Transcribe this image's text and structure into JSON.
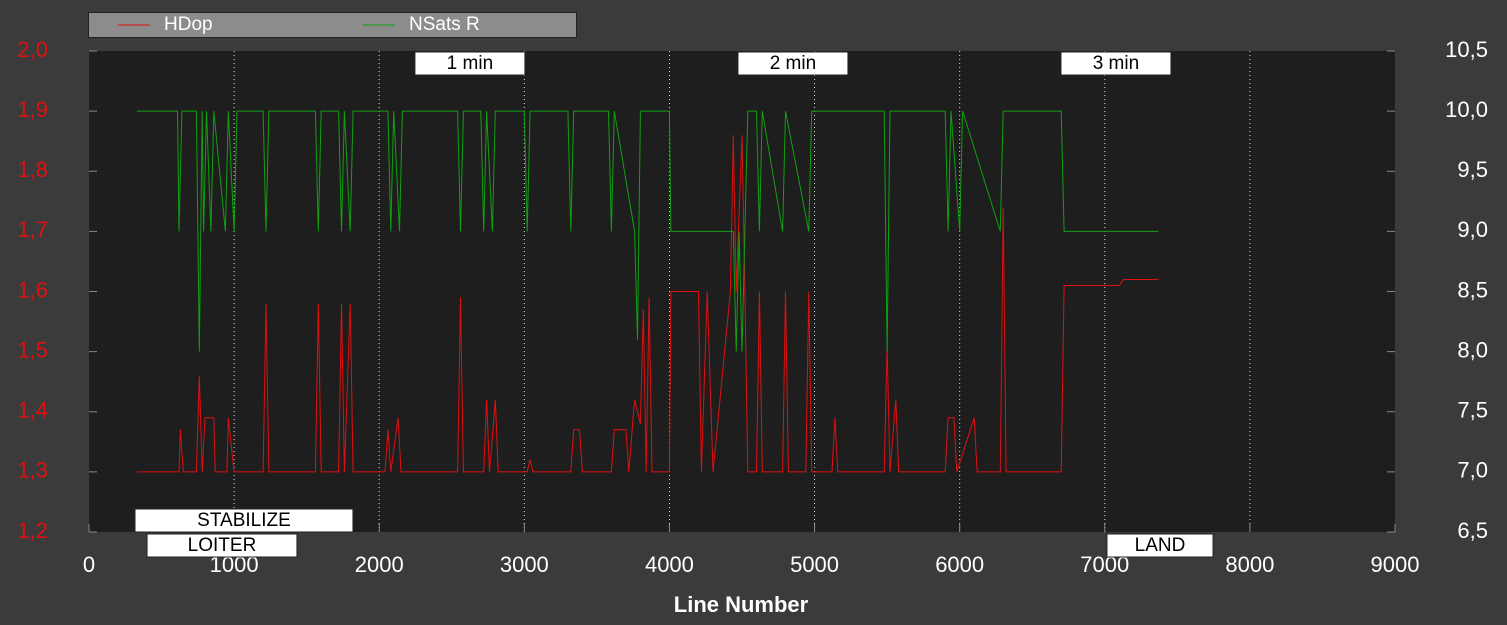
{
  "chart_data": {
    "type": "line",
    "xlabel": "Line Number",
    "xlim": [
      0,
      9000
    ],
    "xticks": [
      0,
      1000,
      2000,
      3000,
      4000,
      5000,
      6000,
      7000,
      8000,
      9000
    ],
    "ylim": [
      1.2,
      2.0
    ],
    "yticks": [
      {
        "value": 1.2,
        "label": "1,2"
      },
      {
        "value": 1.3,
        "label": "1,3"
      },
      {
        "value": 1.4,
        "label": "1,4"
      },
      {
        "value": 1.5,
        "label": "1,5"
      },
      {
        "value": 1.6,
        "label": "1,6"
      },
      {
        "value": 1.7,
        "label": "1,7"
      },
      {
        "value": 1.8,
        "label": "1,8"
      },
      {
        "value": 1.9,
        "label": "1,9"
      },
      {
        "value": 2.0,
        "label": "2,0"
      }
    ],
    "y2lim": [
      6.5,
      10.5
    ],
    "y2ticks": [
      {
        "value": 6.5,
        "label": "6,5"
      },
      {
        "value": 7.0,
        "label": "7,0"
      },
      {
        "value": 7.5,
        "label": "7,5"
      },
      {
        "value": 8.0,
        "label": "8,0"
      },
      {
        "value": 8.5,
        "label": "8,5"
      },
      {
        "value": 9.0,
        "label": "9,0"
      },
      {
        "value": 9.5,
        "label": "9,5"
      },
      {
        "value": 10.0,
        "label": "10,0"
      },
      {
        "value": 10.5,
        "label": "10,5"
      }
    ],
    "grid": true,
    "series": [
      {
        "name": "HDop",
        "color": "#e01010",
        "x": [
          330,
          620,
          630,
          650,
          740,
          760,
          780,
          800,
          860,
          870,
          950,
          960,
          1000,
          1200,
          1220,
          1240,
          1560,
          1580,
          1600,
          1720,
          1740,
          1760,
          1800,
          1820,
          2040,
          2060,
          2080,
          2130,
          2150,
          2540,
          2560,
          2580,
          2720,
          2740,
          2760,
          2800,
          2820,
          3020,
          3040,
          3060,
          3320,
          3340,
          3380,
          3400,
          3600,
          3620,
          3700,
          3720,
          3760,
          3800,
          3820,
          3840,
          3860,
          3880,
          4000,
          4010,
          4200,
          4220,
          4260,
          4300,
          4420,
          4440,
          4460,
          4500,
          4520,
          4540,
          4600,
          4620,
          4640,
          4780,
          4800,
          4820,
          4940,
          4960,
          4980,
          5120,
          5140,
          5160,
          5480,
          5500,
          5520,
          5560,
          5580,
          5900,
          5920,
          5960,
          5980,
          6100,
          6120,
          6280,
          6300,
          6320,
          6700,
          6720,
          7100,
          7130,
          7370
        ],
        "values": [
          1.3,
          1.3,
          1.37,
          1.3,
          1.3,
          1.46,
          1.3,
          1.39,
          1.39,
          1.3,
          1.3,
          1.39,
          1.3,
          1.3,
          1.58,
          1.3,
          1.3,
          1.58,
          1.3,
          1.3,
          1.58,
          1.3,
          1.58,
          1.3,
          1.3,
          1.37,
          1.3,
          1.39,
          1.3,
          1.3,
          1.59,
          1.3,
          1.3,
          1.42,
          1.3,
          1.42,
          1.3,
          1.3,
          1.32,
          1.3,
          1.3,
          1.37,
          1.37,
          1.3,
          1.3,
          1.37,
          1.37,
          1.3,
          1.42,
          1.38,
          1.57,
          1.3,
          1.59,
          1.3,
          1.3,
          1.6,
          1.6,
          1.3,
          1.6,
          1.3,
          1.6,
          1.86,
          1.6,
          1.86,
          1.6,
          1.3,
          1.3,
          1.6,
          1.3,
          1.3,
          1.6,
          1.3,
          1.3,
          1.6,
          1.3,
          1.3,
          1.39,
          1.3,
          1.3,
          1.51,
          1.3,
          1.42,
          1.3,
          1.3,
          1.39,
          1.39,
          1.3,
          1.39,
          1.3,
          1.3,
          1.74,
          1.3,
          1.3,
          1.61,
          1.61,
          1.62,
          1.62
        ]
      },
      {
        "name": "NSats R",
        "color": "#10a010",
        "axis": "y2",
        "x": [
          330,
          610,
          620,
          640,
          740,
          760,
          780,
          790,
          810,
          840,
          860,
          940,
          960,
          1000,
          1020,
          1200,
          1220,
          1240,
          1560,
          1580,
          1600,
          1720,
          1740,
          1760,
          1800,
          1820,
          2060,
          2080,
          2100,
          2140,
          2160,
          2540,
          2560,
          2580,
          2700,
          2720,
          2740,
          2780,
          2800,
          3000,
          3020,
          3040,
          3300,
          3320,
          3340,
          3580,
          3600,
          3620,
          3760,
          3780,
          3800,
          4000,
          4010,
          4440,
          4460,
          4480,
          4500,
          4520,
          4540,
          4600,
          4620,
          4640,
          4780,
          4800,
          4960,
          4980,
          5480,
          5500,
          5520,
          5900,
          5920,
          5940,
          6000,
          6020,
          6280,
          6300,
          6700,
          6720,
          7370
        ],
        "values": [
          10,
          10,
          9,
          10,
          10,
          8,
          10,
          9,
          10,
          9,
          10,
          9,
          10,
          9,
          10,
          10,
          9,
          10,
          10,
          9,
          10,
          10,
          9,
          10,
          9,
          10,
          10,
          9,
          10,
          9,
          10,
          10,
          9,
          10,
          10,
          9,
          10,
          9,
          10,
          10,
          9,
          10,
          10,
          9,
          10,
          10,
          9,
          10,
          9,
          8.1,
          10,
          10,
          9,
          9,
          8,
          9,
          8,
          9,
          10,
          10,
          9,
          10,
          9,
          10,
          9,
          10,
          10,
          8,
          10,
          10,
          9,
          10,
          9,
          10,
          9,
          10,
          10,
          9,
          9
        ]
      }
    ],
    "time_markers": [
      {
        "label": "1 min",
        "x": [
          2246,
          3004
        ]
      },
      {
        "label": "2 min",
        "x": [
          4472,
          5230
        ]
      },
      {
        "label": "3 min",
        "x": [
          6698,
          7456
        ]
      }
    ],
    "modes": [
      {
        "label": "STABILIZE",
        "x": [
          317,
          1819
        ]
      },
      {
        "label": "LOITER",
        "x": [
          400,
          1433
        ]
      },
      {
        "label": "LAND",
        "x": [
          7015,
          7746
        ]
      }
    ]
  }
}
